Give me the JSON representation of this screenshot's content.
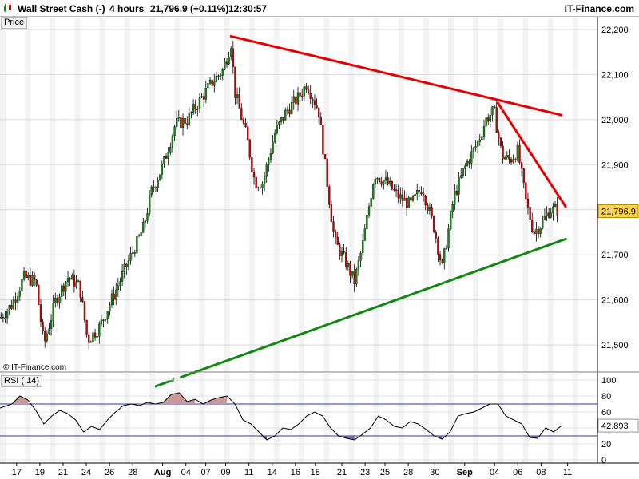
{
  "header": {
    "title": "Wall Street Cash (-)",
    "timeframe": "4 hours",
    "last": "21,796.9 (+0.11%)",
    "time": "12:30:57",
    "brand": "IT-Finance.com"
  },
  "copyright": "© IT-Finance.com",
  "colors": {
    "resistance": "#e60000",
    "support": "#118811",
    "up_candle": "#118811",
    "down_candle": "#cc0000",
    "price_tag_bg": "#ffd24d",
    "rsi_line": "#000000",
    "rsi_overbought_fill": "#c79a95",
    "rsi_oversold_fill": "#6b6bb3"
  },
  "chart_data": [
    {
      "type": "candlestick",
      "panel_label": "Price",
      "ylim": [
        21440,
        22230
      ],
      "yticks": [
        "22,200",
        "22,100",
        "22,000",
        "21,900",
        "21,800",
        "21,700",
        "21,600",
        "21,500"
      ],
      "current_price_label": "21,796.9",
      "current_price": 21796.9,
      "x_labels": [
        "17",
        "19",
        "21",
        "24",
        "26",
        "28",
        "Aug",
        "04",
        "07",
        "09",
        "11",
        "14",
        "16",
        "18",
        "21",
        "23",
        "25",
        "28",
        "30",
        "Sep",
        "04",
        "06",
        "08",
        "11"
      ],
      "close_path": [
        {
          "x": 0,
          "y": 21560
        },
        {
          "x": 6,
          "y": 21590
        },
        {
          "x": 12,
          "y": 21650
        },
        {
          "x": 18,
          "y": 21640
        },
        {
          "x": 22,
          "y": 21500
        },
        {
          "x": 28,
          "y": 21600
        },
        {
          "x": 34,
          "y": 21650
        },
        {
          "x": 40,
          "y": 21630
        },
        {
          "x": 44,
          "y": 21510
        },
        {
          "x": 50,
          "y": 21540
        },
        {
          "x": 56,
          "y": 21600
        },
        {
          "x": 60,
          "y": 21640
        },
        {
          "x": 66,
          "y": 21700
        },
        {
          "x": 72,
          "y": 21760
        },
        {
          "x": 76,
          "y": 21840
        },
        {
          "x": 82,
          "y": 21900
        },
        {
          "x": 88,
          "y": 21990
        },
        {
          "x": 94,
          "y": 22000
        },
        {
          "x": 100,
          "y": 22040
        },
        {
          "x": 106,
          "y": 22080
        },
        {
          "x": 112,
          "y": 22110
        },
        {
          "x": 116,
          "y": 22170
        },
        {
          "x": 118,
          "y": 22060
        },
        {
          "x": 124,
          "y": 21960
        },
        {
          "x": 128,
          "y": 21860
        },
        {
          "x": 132,
          "y": 21860
        },
        {
          "x": 138,
          "y": 21970
        },
        {
          "x": 144,
          "y": 22020
        },
        {
          "x": 150,
          "y": 22050
        },
        {
          "x": 154,
          "y": 22080
        },
        {
          "x": 160,
          "y": 22020
        },
        {
          "x": 164,
          "y": 21870
        },
        {
          "x": 168,
          "y": 21730
        },
        {
          "x": 174,
          "y": 21680
        },
        {
          "x": 178,
          "y": 21640
        },
        {
          "x": 182,
          "y": 21720
        },
        {
          "x": 188,
          "y": 21880
        },
        {
          "x": 194,
          "y": 21860
        },
        {
          "x": 200,
          "y": 21830
        },
        {
          "x": 206,
          "y": 21810
        },
        {
          "x": 212,
          "y": 21850
        },
        {
          "x": 218,
          "y": 21760
        },
        {
          "x": 222,
          "y": 21670
        },
        {
          "x": 228,
          "y": 21830
        },
        {
          "x": 234,
          "y": 21900
        },
        {
          "x": 240,
          "y": 21950
        },
        {
          "x": 244,
          "y": 22000
        },
        {
          "x": 248,
          "y": 22020
        },
        {
          "x": 252,
          "y": 21920
        },
        {
          "x": 256,
          "y": 21910
        },
        {
          "x": 260,
          "y": 21930
        },
        {
          "x": 264,
          "y": 21820
        },
        {
          "x": 268,
          "y": 21750
        },
        {
          "x": 272,
          "y": 21770
        },
        {
          "x": 276,
          "y": 21800
        },
        {
          "x": 280,
          "y": 21800
        }
      ],
      "resistance_line": [
        {
          "x": 116,
          "y": 22185
        },
        {
          "x": 282,
          "y": 22010
        }
      ],
      "resistance_line_2": [
        {
          "x": 250,
          "y": 22037
        },
        {
          "x": 284,
          "y": 21807
        }
      ],
      "support_line": [
        {
          "x": 76,
          "y": 21405
        },
        {
          "x": 284,
          "y": 21735
        }
      ],
      "x_max": 300
    },
    {
      "type": "line",
      "panel_label": "RSI ( 14)",
      "ylim": [
        0,
        100
      ],
      "yticks": [
        "100",
        "80",
        "60",
        "40",
        "20",
        "0"
      ],
      "bands": [
        70,
        30
      ],
      "current_value_label": "42.893",
      "current_value": 42.893,
      "series": [
        {
          "values": [
            {
              "x": 0,
              "y": 65
            },
            {
              "x": 6,
              "y": 70
            },
            {
              "x": 10,
              "y": 80
            },
            {
              "x": 14,
              "y": 75
            },
            {
              "x": 18,
              "y": 62
            },
            {
              "x": 22,
              "y": 45
            },
            {
              "x": 26,
              "y": 55
            },
            {
              "x": 30,
              "y": 62
            },
            {
              "x": 34,
              "y": 58
            },
            {
              "x": 38,
              "y": 50
            },
            {
              "x": 42,
              "y": 35
            },
            {
              "x": 46,
              "y": 42
            },
            {
              "x": 50,
              "y": 38
            },
            {
              "x": 54,
              "y": 50
            },
            {
              "x": 58,
              "y": 60
            },
            {
              "x": 62,
              "y": 68
            },
            {
              "x": 66,
              "y": 70
            },
            {
              "x": 70,
              "y": 68
            },
            {
              "x": 74,
              "y": 72
            },
            {
              "x": 78,
              "y": 70
            },
            {
              "x": 82,
              "y": 72
            },
            {
              "x": 86,
              "y": 82
            },
            {
              "x": 90,
              "y": 84
            },
            {
              "x": 94,
              "y": 73
            },
            {
              "x": 98,
              "y": 76
            },
            {
              "x": 102,
              "y": 70
            },
            {
              "x": 106,
              "y": 75
            },
            {
              "x": 110,
              "y": 78
            },
            {
              "x": 114,
              "y": 80
            },
            {
              "x": 118,
              "y": 70
            },
            {
              "x": 122,
              "y": 50
            },
            {
              "x": 126,
              "y": 45
            },
            {
              "x": 130,
              "y": 35
            },
            {
              "x": 134,
              "y": 25
            },
            {
              "x": 138,
              "y": 30
            },
            {
              "x": 142,
              "y": 40
            },
            {
              "x": 146,
              "y": 38
            },
            {
              "x": 150,
              "y": 45
            },
            {
              "x": 154,
              "y": 55
            },
            {
              "x": 158,
              "y": 60
            },
            {
              "x": 162,
              "y": 55
            },
            {
              "x": 166,
              "y": 40
            },
            {
              "x": 170,
              "y": 30
            },
            {
              "x": 174,
              "y": 27
            },
            {
              "x": 178,
              "y": 25
            },
            {
              "x": 182,
              "y": 32
            },
            {
              "x": 186,
              "y": 40
            },
            {
              "x": 190,
              "y": 55
            },
            {
              "x": 194,
              "y": 50
            },
            {
              "x": 198,
              "y": 42
            },
            {
              "x": 202,
              "y": 40
            },
            {
              "x": 206,
              "y": 48
            },
            {
              "x": 210,
              "y": 45
            },
            {
              "x": 214,
              "y": 38
            },
            {
              "x": 218,
              "y": 30
            },
            {
              "x": 222,
              "y": 26
            },
            {
              "x": 226,
              "y": 35
            },
            {
              "x": 230,
              "y": 55
            },
            {
              "x": 234,
              "y": 58
            },
            {
              "x": 238,
              "y": 60
            },
            {
              "x": 242,
              "y": 65
            },
            {
              "x": 246,
              "y": 70
            },
            {
              "x": 250,
              "y": 70
            },
            {
              "x": 254,
              "y": 55
            },
            {
              "x": 258,
              "y": 50
            },
            {
              "x": 262,
              "y": 45
            },
            {
              "x": 266,
              "y": 28
            },
            {
              "x": 270,
              "y": 27
            },
            {
              "x": 274,
              "y": 40
            },
            {
              "x": 278,
              "y": 35
            },
            {
              "x": 282,
              "y": 43
            }
          ]
        }
      ],
      "x_max": 300
    }
  ]
}
